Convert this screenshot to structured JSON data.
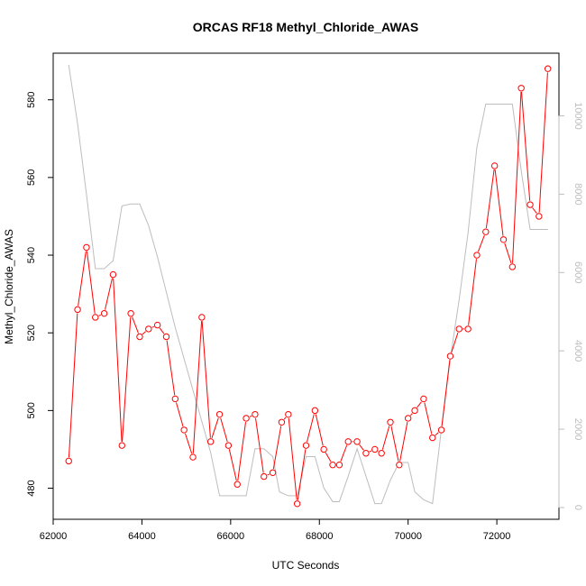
{
  "chart_data": {
    "type": "line",
    "title": "ORCAS RF18 Methyl_Chloride_AWAS",
    "xlabel": "UTC Seconds",
    "ylabel": "Methyl_Chloride_AWAS",
    "xlim": [
      62000,
      73400
    ],
    "ylim": [
      472,
      592
    ],
    "y2lim": [
      -300,
      11600
    ],
    "x_ticks": [
      62000,
      64000,
      66000,
      68000,
      70000,
      72000
    ],
    "y_ticks": [
      480,
      500,
      520,
      540,
      560,
      580
    ],
    "y2_ticks": [
      0,
      2000,
      4000,
      6000,
      8000,
      10000
    ],
    "grid": false,
    "series": [
      {
        "axis": "left",
        "color": "#ff0000",
        "style": "line+circles",
        "points": [
          [
            62350,
            487
          ],
          [
            62550,
            526
          ],
          [
            62750,
            542
          ],
          [
            62950,
            524
          ],
          [
            63150,
            525
          ],
          [
            63350,
            535
          ],
          [
            63550,
            491
          ],
          [
            63750,
            525
          ],
          [
            63950,
            519
          ],
          [
            64150,
            521
          ],
          [
            64350,
            522
          ],
          [
            64550,
            519
          ],
          [
            64750,
            503
          ],
          [
            64950,
            495
          ],
          [
            65150,
            488
          ],
          [
            65350,
            524
          ],
          [
            65550,
            492
          ],
          [
            65750,
            499
          ],
          [
            65950,
            491
          ],
          [
            66150,
            481
          ],
          [
            66350,
            498
          ],
          [
            66550,
            499
          ],
          [
            66750,
            483
          ],
          [
            66950,
            484
          ],
          [
            67150,
            497
          ],
          [
            67300,
            499
          ],
          [
            67500,
            476
          ],
          [
            67700,
            491
          ],
          [
            67900,
            500
          ],
          [
            68100,
            490
          ],
          [
            68300,
            486
          ],
          [
            68450,
            486
          ],
          [
            68650,
            492
          ],
          [
            68850,
            492
          ],
          [
            69050,
            489
          ],
          [
            69250,
            490
          ],
          [
            69400,
            489
          ],
          [
            69600,
            497
          ],
          [
            69800,
            486
          ],
          [
            70000,
            498
          ],
          [
            70150,
            500
          ],
          [
            70350,
            503
          ],
          [
            70550,
            493
          ],
          [
            70750,
            495
          ],
          [
            70950,
            514
          ],
          [
            71150,
            521
          ],
          [
            71350,
            521
          ],
          [
            71550,
            540
          ],
          [
            71750,
            546
          ],
          [
            71950,
            563
          ],
          [
            72150,
            544
          ],
          [
            72350,
            537
          ],
          [
            72550,
            583
          ],
          [
            72750,
            553
          ],
          [
            72950,
            550
          ],
          [
            73150,
            588
          ]
        ]
      },
      {
        "axis": "right",
        "color": "#bdbdbd",
        "style": "line",
        "points": [
          [
            62350,
            11300
          ],
          [
            62550,
            9800
          ],
          [
            62750,
            8000
          ],
          [
            62950,
            6100
          ],
          [
            63150,
            6100
          ],
          [
            63350,
            6300
          ],
          [
            63550,
            7700
          ],
          [
            63750,
            7750
          ],
          [
            63950,
            7750
          ],
          [
            64150,
            7200
          ],
          [
            64350,
            6400
          ],
          [
            64550,
            5500
          ],
          [
            64750,
            4600
          ],
          [
            64950,
            3800
          ],
          [
            65150,
            3000
          ],
          [
            65350,
            2200
          ],
          [
            65550,
            1400
          ],
          [
            65750,
            300
          ],
          [
            65950,
            300
          ],
          [
            66150,
            300
          ],
          [
            66350,
            300
          ],
          [
            66550,
            1500
          ],
          [
            66750,
            1500
          ],
          [
            66950,
            1300
          ],
          [
            67100,
            400
          ],
          [
            67300,
            300
          ],
          [
            67500,
            300
          ],
          [
            67700,
            1300
          ],
          [
            67900,
            1300
          ],
          [
            68100,
            500
          ],
          [
            68300,
            150
          ],
          [
            68450,
            150
          ],
          [
            68650,
            800
          ],
          [
            68850,
            1500
          ],
          [
            69050,
            800
          ],
          [
            69250,
            100
          ],
          [
            69400,
            100
          ],
          [
            69600,
            700
          ],
          [
            69800,
            1150
          ],
          [
            70000,
            1150
          ],
          [
            70150,
            400
          ],
          [
            70350,
            200
          ],
          [
            70550,
            100
          ],
          [
            70750,
            2000
          ],
          [
            70950,
            3800
          ],
          [
            71150,
            5300
          ],
          [
            71350,
            7000
          ],
          [
            71550,
            9200
          ],
          [
            71750,
            10300
          ],
          [
            71950,
            10300
          ],
          [
            72150,
            10300
          ],
          [
            72350,
            10300
          ],
          [
            72550,
            8600
          ],
          [
            72750,
            7100
          ],
          [
            72950,
            7100
          ],
          [
            73150,
            7100
          ]
        ]
      }
    ]
  }
}
